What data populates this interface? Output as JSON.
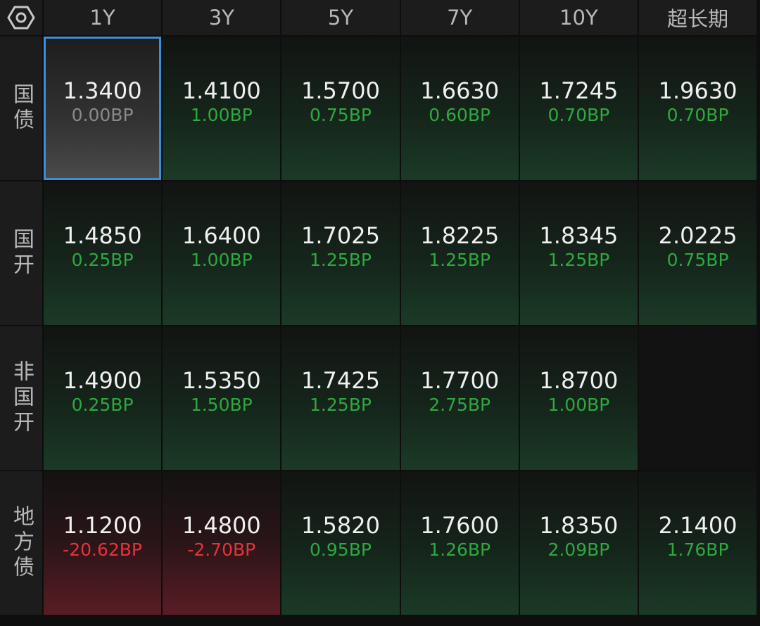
{
  "table": {
    "columns": [
      "1Y",
      "3Y",
      "5Y",
      "7Y",
      "10Y",
      "超长期"
    ],
    "rows": [
      {
        "label": "国债",
        "cells": [
          {
            "value": "1.3400",
            "change": "0.00BP"
          },
          {
            "value": "1.4100",
            "change": "1.00BP"
          },
          {
            "value": "1.5700",
            "change": "0.75BP"
          },
          {
            "value": "1.6630",
            "change": "0.60BP"
          },
          {
            "value": "1.7245",
            "change": "0.70BP"
          },
          {
            "value": "1.9630",
            "change": "0.70BP"
          }
        ]
      },
      {
        "label": "国开",
        "cells": [
          {
            "value": "1.4850",
            "change": "0.25BP"
          },
          {
            "value": "1.6400",
            "change": "1.00BP"
          },
          {
            "value": "1.7025",
            "change": "1.25BP"
          },
          {
            "value": "1.8225",
            "change": "1.25BP"
          },
          {
            "value": "1.8345",
            "change": "1.25BP"
          },
          {
            "value": "2.0225",
            "change": "0.75BP"
          }
        ]
      },
      {
        "label": "非国开",
        "cells": [
          {
            "value": "1.4900",
            "change": "0.25BP"
          },
          {
            "value": "1.5350",
            "change": "1.50BP"
          },
          {
            "value": "1.7425",
            "change": "1.25BP"
          },
          {
            "value": "1.7700",
            "change": "2.75BP"
          },
          {
            "value": "1.8700",
            "change": "1.00BP"
          },
          null
        ]
      },
      {
        "label": "地方债",
        "cells": [
          {
            "value": "1.1200",
            "change": "-20.62BP"
          },
          {
            "value": "1.4800",
            "change": "-2.70BP"
          },
          {
            "value": "1.5820",
            "change": "0.95BP"
          },
          {
            "value": "1.7600",
            "change": "1.26BP"
          },
          {
            "value": "1.8350",
            "change": "2.09BP"
          },
          {
            "value": "2.1400",
            "change": "1.76BP"
          }
        ]
      }
    ]
  }
}
